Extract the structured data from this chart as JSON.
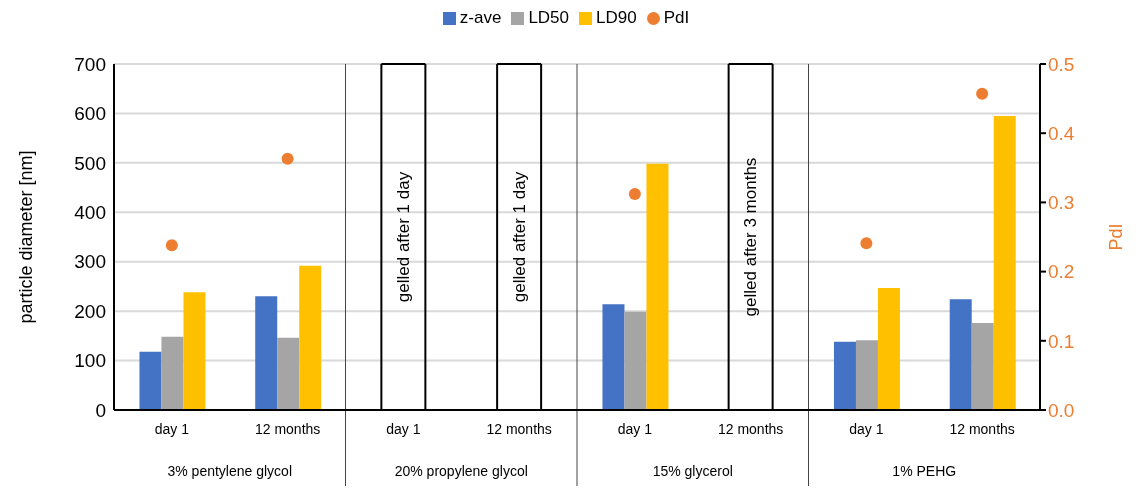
{
  "chart_data": {
    "type": "bar",
    "ylabel": "particle diameter [nm]",
    "y2label": "PdI",
    "categories": [
      "day 1",
      "12 months",
      "day 1",
      "12 months",
      "day 1",
      "12 months",
      "day 1",
      "12 months"
    ],
    "series": [
      {
        "name": "z-ave",
        "color": "#4472c4",
        "values": [
          118,
          230,
          null,
          null,
          214,
          null,
          138,
          224
        ]
      },
      {
        "name": "LD50",
        "color": "#a5a5a5",
        "values": [
          148,
          146,
          null,
          null,
          199,
          null,
          141,
          176
        ]
      },
      {
        "name": "LD90",
        "color": "#ffc000",
        "values": [
          238,
          292,
          null,
          null,
          498,
          null,
          247,
          595
        ]
      },
      {
        "name": "PdI",
        "type": "scatter",
        "axis": "y2",
        "color": "#ed7d31",
        "values": [
          0.238,
          0.363,
          null,
          null,
          0.312,
          null,
          0.241,
          0.457
        ]
      }
    ],
    "ylim": [
      0,
      700
    ],
    "yticks": [
      0,
      100,
      200,
      300,
      400,
      500,
      600,
      700
    ],
    "y2lim": [
      0,
      0.5
    ],
    "y2ticks": [
      {
        "value": 0,
        "label": "0.0"
      },
      0.1,
      0.2,
      0.3,
      0.4,
      0.5
    ],
    "grid": "y",
    "legend": "top",
    "marker": "circle",
    "annotations": [
      "gelled after 1 day",
      "gelled after 1 day",
      "gelled after 3 months",
      "3% pentylene glycol",
      "20% propylene glycol",
      "15% glycerol",
      "1% PEHG"
    ]
  }
}
